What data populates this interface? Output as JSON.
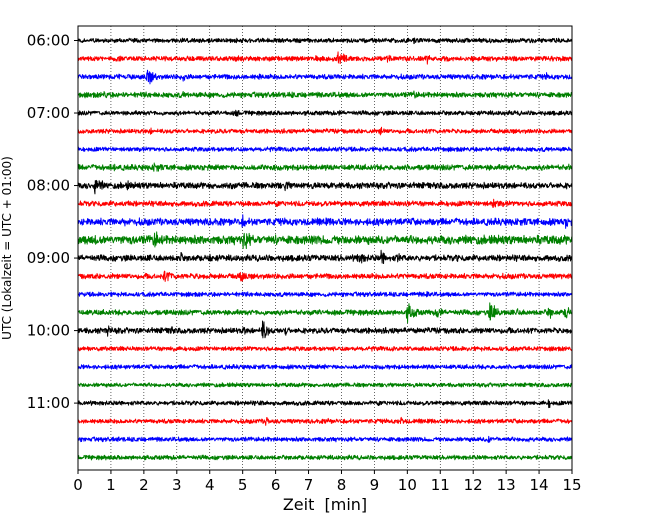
{
  "chart_data": {
    "type": "line",
    "subtype": "helicorder",
    "title": "",
    "xlabel": "Zeit  [min]",
    "ylabel": "UTC (Lokalzeit = UTC + 01:00)",
    "xlim": [
      0,
      15
    ],
    "x_ticks": [
      0,
      1,
      2,
      3,
      4,
      5,
      6,
      7,
      8,
      9,
      10,
      11,
      12,
      13,
      14,
      15
    ],
    "x_grid": "dotted vertical lines at each minute",
    "trace_interval_min": 15,
    "trace_colors": [
      "#000000",
      "#ff0000",
      "#0000ff",
      "#008000"
    ],
    "y_ticks": [
      "06:00",
      "07:00",
      "08:00",
      "09:00",
      "10:00",
      "11:00"
    ],
    "traces": [
      {
        "start": "06:00",
        "color": "#000000",
        "base": 2.5,
        "events": [
          [
            10.2,
            5,
            0.12
          ],
          [
            3.5,
            4,
            0.12
          ]
        ]
      },
      {
        "start": "06:15",
        "color": "#ff0000",
        "base": 2.8,
        "events": [
          [
            7.9,
            10,
            0.35
          ],
          [
            9.4,
            8,
            0.12
          ],
          [
            10.6,
            7,
            0.1
          ],
          [
            4.8,
            6,
            0.15
          ],
          [
            7.2,
            5,
            0.2
          ]
        ]
      },
      {
        "start": "06:30",
        "color": "#0000ff",
        "base": 2.8,
        "events": [
          [
            2.1,
            10,
            0.3
          ],
          [
            3.2,
            7,
            0.1
          ],
          [
            5.5,
            5,
            0.1
          ],
          [
            14.2,
            5,
            0.2
          ]
        ]
      },
      {
        "start": "06:45",
        "color": "#008000",
        "base": 3.0,
        "events": [
          [
            0.8,
            6,
            0.15
          ],
          [
            3.2,
            5,
            0.1
          ],
          [
            10.2,
            7,
            0.12
          ],
          [
            6.5,
            4,
            0.1
          ]
        ]
      },
      {
        "start": "07:00",
        "color": "#000000",
        "base": 2.5,
        "events": [
          [
            4.8,
            7,
            0.12
          ],
          [
            7.9,
            5,
            0.12
          ],
          [
            2.5,
            4,
            0.1
          ]
        ]
      },
      {
        "start": "07:15",
        "color": "#ff0000",
        "base": 2.5,
        "events": [
          [
            9.2,
            8,
            0.1
          ],
          [
            2.2,
            5,
            0.1
          ]
        ]
      },
      {
        "start": "07:30",
        "color": "#0000ff",
        "base": 2.5,
        "events": [
          [
            4.0,
            4,
            0.1
          ],
          [
            9.5,
            4,
            0.1
          ]
        ]
      },
      {
        "start": "07:45",
        "color": "#008000",
        "base": 3.2,
        "events": [
          [
            1.1,
            6,
            0.12
          ],
          [
            2.3,
            6,
            0.4
          ],
          [
            3.5,
            4,
            0.2
          ],
          [
            12.5,
            4,
            0.3
          ],
          [
            14.9,
            6,
            0.1
          ]
        ]
      },
      {
        "start": "08:00",
        "color": "#000000",
        "base": 3.5,
        "events": [
          [
            0.5,
            11,
            0.3
          ],
          [
            1.5,
            6,
            0.15
          ],
          [
            4.3,
            6,
            0.1
          ],
          [
            6.3,
            8,
            0.2
          ],
          [
            8.1,
            5,
            0.1
          ],
          [
            9.9,
            5,
            0.1
          ]
        ]
      },
      {
        "start": "08:15",
        "color": "#ff0000",
        "base": 3.0,
        "events": [
          [
            1.5,
            4,
            0.3
          ],
          [
            4.0,
            4,
            0.2
          ],
          [
            12.6,
            6,
            0.5
          ],
          [
            11.9,
            5,
            0.1
          ],
          [
            14.1,
            4,
            0.2
          ]
        ]
      },
      {
        "start": "08:30",
        "color": "#0000ff",
        "base": 4.0,
        "events": [
          [
            1.4,
            6,
            0.3
          ],
          [
            5.0,
            9,
            0.15
          ],
          [
            7.5,
            5,
            0.4
          ],
          [
            9.5,
            5,
            0.3
          ],
          [
            14.8,
            8,
            0.15
          ]
        ]
      },
      {
        "start": "08:45",
        "color": "#008000",
        "base": 5.0,
        "events": [
          [
            0.5,
            8,
            0.4
          ],
          [
            2.3,
            12,
            0.3
          ],
          [
            5.0,
            13,
            0.35
          ],
          [
            6.0,
            6,
            0.2
          ],
          [
            7.8,
            6,
            0.2
          ],
          [
            8.8,
            5,
            0.2
          ],
          [
            10.5,
            5,
            0.2
          ]
        ]
      },
      {
        "start": "09:00",
        "color": "#000000",
        "base": 3.5,
        "events": [
          [
            3.1,
            10,
            0.08
          ],
          [
            4.0,
            6,
            0.2
          ],
          [
            8.5,
            8,
            0.4
          ],
          [
            9.2,
            10,
            0.25
          ],
          [
            9.7,
            8,
            0.15
          ],
          [
            11.5,
            5,
            0.2
          ],
          [
            2.2,
            5,
            0.2
          ]
        ]
      },
      {
        "start": "09:15",
        "color": "#ff0000",
        "base": 3.0,
        "events": [
          [
            2.6,
            7,
            0.5
          ],
          [
            4.9,
            8,
            0.3
          ],
          [
            3.6,
            5,
            0.2
          ],
          [
            9.9,
            6,
            0.1
          ],
          [
            12.5,
            4,
            0.2
          ]
        ]
      },
      {
        "start": "09:30",
        "color": "#0000ff",
        "base": 2.5,
        "events": [
          [
            10.6,
            6,
            0.1
          ],
          [
            6.5,
            4,
            0.1
          ]
        ]
      },
      {
        "start": "09:45",
        "color": "#008000",
        "base": 3.0,
        "events": [
          [
            10.0,
            12,
            0.3
          ],
          [
            10.9,
            9,
            0.2
          ],
          [
            12.5,
            12,
            0.3
          ],
          [
            13.3,
            6,
            0.2
          ],
          [
            14.3,
            11,
            0.1
          ],
          [
            14.8,
            11,
            0.15
          ],
          [
            6.5,
            4,
            0.3
          ],
          [
            3.5,
            4,
            0.2
          ]
        ]
      },
      {
        "start": "10:00",
        "color": "#000000",
        "base": 3.2,
        "events": [
          [
            0.9,
            10,
            0.08
          ],
          [
            1.2,
            5,
            0.2
          ],
          [
            2.8,
            8,
            0.1
          ],
          [
            5.6,
            14,
            0.2
          ],
          [
            6.3,
            9,
            0.08
          ],
          [
            5.0,
            6,
            0.2
          ]
        ]
      },
      {
        "start": "10:15",
        "color": "#ff0000",
        "base": 2.5,
        "events": [
          [
            2.9,
            6,
            0.1
          ],
          [
            5.2,
            4,
            0.1
          ]
        ]
      },
      {
        "start": "10:30",
        "color": "#0000ff",
        "base": 2.5,
        "events": [
          [
            7.5,
            4,
            0.1
          ]
        ]
      },
      {
        "start": "10:45",
        "color": "#008000",
        "base": 2.3,
        "events": [
          [
            9.5,
            3,
            0.2
          ]
        ]
      },
      {
        "start": "11:00",
        "color": "#000000",
        "base": 2.5,
        "events": [
          [
            14.3,
            7,
            0.1
          ],
          [
            5.5,
            4,
            0.2
          ],
          [
            1.2,
            3,
            0.2
          ]
        ]
      },
      {
        "start": "11:15",
        "color": "#ff0000",
        "base": 2.5,
        "events": [
          [
            5.7,
            8,
            0.1
          ],
          [
            9.8,
            8,
            0.08
          ],
          [
            7.6,
            5,
            0.1
          ],
          [
            2.0,
            3,
            0.2
          ]
        ]
      },
      {
        "start": "11:30",
        "color": "#0000ff",
        "base": 2.5,
        "events": [
          [
            12.4,
            6,
            0.3
          ],
          [
            13.6,
            5,
            0.2
          ],
          [
            1.2,
            4,
            0.1
          ],
          [
            7.3,
            4,
            0.1
          ]
        ]
      },
      {
        "start": "11:45",
        "color": "#008000",
        "base": 2.5,
        "events": [
          [
            0.8,
            3,
            0.1
          ]
        ]
      }
    ]
  }
}
